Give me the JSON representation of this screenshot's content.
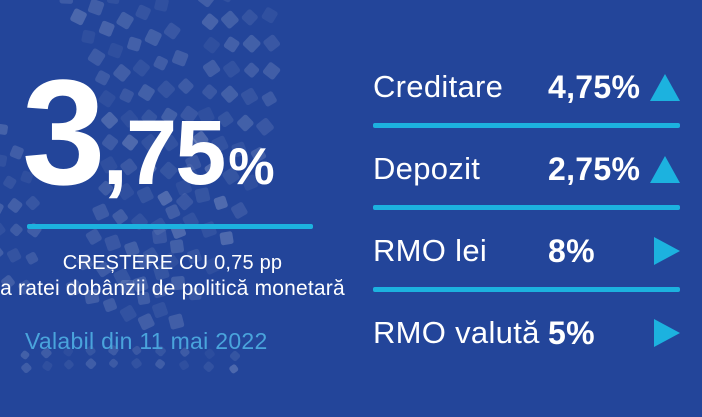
{
  "rate": {
    "int_part": "3",
    "dec_part": ",75",
    "pct": "%"
  },
  "description": {
    "line1": "CREȘTERE CU 0,75 pp",
    "line2": "a ratei dobânzii de politică monetară"
  },
  "validity": {
    "text": "Valabil din 11 mai 2022"
  },
  "rates_table": {
    "rows": [
      {
        "label": "Creditare",
        "value": "4,75%",
        "trend": "up"
      },
      {
        "label": "Depozit",
        "value": "2,75%",
        "trend": "up"
      },
      {
        "label": "RMO lei",
        "value": "8%",
        "trend": "unchanged"
      },
      {
        "label": "RMO valută",
        "value": "5%",
        "trend": "unchanged"
      }
    ]
  },
  "colors": {
    "background": "#23459A",
    "accent_cyan": "#1CB2DF",
    "text_white": "#FFFFFF",
    "validity_blue": "#4AA4DC"
  },
  "chart_data": {
    "type": "table",
    "title": "Rata dobânzii de politică monetară",
    "main_value": 3.75,
    "main_value_unit": "%",
    "change": "+0,75 pp",
    "valid_from": "11 mai 2022",
    "rows": [
      {
        "label": "Creditare",
        "value": 4.75,
        "unit": "%",
        "trend": "up"
      },
      {
        "label": "Depozit",
        "value": 2.75,
        "unit": "%",
        "trend": "up"
      },
      {
        "label": "RMO lei",
        "value": 8,
        "unit": "%",
        "trend": "unchanged"
      },
      {
        "label": "RMO valută",
        "value": 5,
        "unit": "%",
        "trend": "unchanged"
      }
    ]
  }
}
